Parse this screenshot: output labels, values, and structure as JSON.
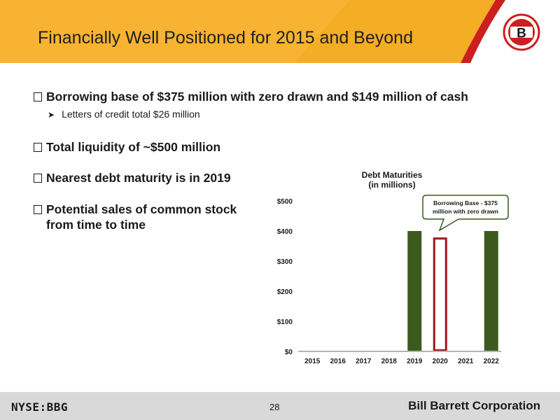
{
  "header": {
    "title": "Financially Well Positioned for 2015 and Beyond",
    "logo_letter": "B",
    "band_color": "#f7b331",
    "accent_color": "#cc1f1f"
  },
  "bullets": [
    {
      "text": "Borrowing base of $375 million with zero drawn and $149 million of cash"
    },
    {
      "text": "Total liquidity of ~$500 million"
    },
    {
      "text": "Nearest debt maturity is in 2019"
    },
    {
      "text_line1": "Potential sales of common stock",
      "text_line2": "from time to time"
    }
  ],
  "sub_bullets": [
    {
      "text": "Letters of credit total $26 million"
    }
  ],
  "chart_data": {
    "type": "bar",
    "title": "Debt Maturities",
    "subtitle": "(in millions)",
    "categories": [
      "2015",
      "2016",
      "2017",
      "2018",
      "2019",
      "2020",
      "2021",
      "2022"
    ],
    "series": [
      {
        "values": [
          0,
          0,
          0,
          0,
          400,
          0,
          0,
          400
        ],
        "color": "#3c5a1e"
      },
      {
        "values": [
          0,
          0,
          0,
          0,
          0,
          375,
          0,
          0
        ],
        "style": "outline",
        "color": "#a3141b"
      }
    ],
    "ylim": [
      0,
      500
    ],
    "y_ticks": [
      "$0",
      "$100",
      "$200",
      "$300",
      "$400",
      "$500"
    ],
    "y_tick_values": [
      0,
      100,
      200,
      300,
      400,
      500
    ],
    "annotation": {
      "line1": "Borrowing Base - $375",
      "line2": "million with zero drawn",
      "target_category": "2020"
    },
    "grid": false
  },
  "footer": {
    "ticker": "NYSE:BBG",
    "page_number": "28",
    "company": "Bill Barrett Corporation"
  }
}
